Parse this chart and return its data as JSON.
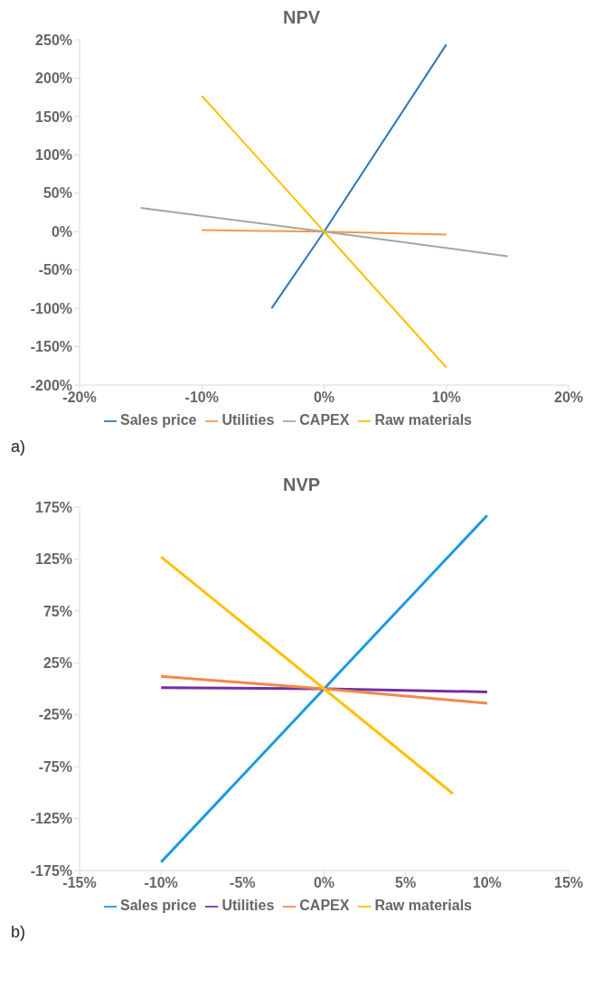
{
  "chart_data": [
    {
      "type": "line",
      "title": "NPV",
      "xlim": [
        -20,
        20
      ],
      "xticks": [
        {
          "value": -20,
          "label": "-20%"
        },
        {
          "value": -10,
          "label": "-10%"
        },
        {
          "value": 0,
          "label": "0%"
        },
        {
          "value": 10,
          "label": "10%"
        },
        {
          "value": 20,
          "label": "20%"
        }
      ],
      "ylim": [
        -200,
        250
      ],
      "yticks": [
        {
          "value": -200,
          "label": "-200%"
        },
        {
          "value": -150,
          "label": "-150%"
        },
        {
          "value": -100,
          "label": "-100%"
        },
        {
          "value": -50,
          "label": "-50%"
        },
        {
          "value": 0,
          "label": "0%"
        },
        {
          "value": 50,
          "label": "50%"
        },
        {
          "value": 100,
          "label": "100%"
        },
        {
          "value": 150,
          "label": "150%"
        },
        {
          "value": 200,
          "label": "200%"
        },
        {
          "value": 250,
          "label": "250%"
        }
      ],
      "grid": false,
      "legend": "bottom",
      "marker": "none",
      "line_style": "solid",
      "annotations": [
        "a)"
      ],
      "series": [
        {
          "name": "Sales price",
          "color": "#2e75b6",
          "x": [
            -4.3,
            0,
            10
          ],
          "values": [
            -100,
            0,
            244
          ]
        },
        {
          "name": "Utilities",
          "color": "#f79646",
          "x": [
            -10,
            0,
            10
          ],
          "values": [
            2,
            0,
            -4
          ]
        },
        {
          "name": "CAPEX",
          "color": "#a5a5a5",
          "x": [
            -15,
            0,
            15
          ],
          "values": [
            31,
            0,
            -32
          ]
        },
        {
          "name": "Raw materials",
          "color": "#ffc000",
          "x": [
            -10,
            0,
            10
          ],
          "values": [
            177,
            0,
            -177
          ]
        }
      ]
    },
    {
      "type": "line",
      "title": "NVP",
      "xlim": [
        -15,
        15
      ],
      "xticks": [
        {
          "value": -15,
          "label": "-15%"
        },
        {
          "value": -10,
          "label": "-10%"
        },
        {
          "value": -5,
          "label": "-5%"
        },
        {
          "value": 0,
          "label": "0%"
        },
        {
          "value": 5,
          "label": "5%"
        },
        {
          "value": 10,
          "label": "10%"
        },
        {
          "value": 15,
          "label": "15%"
        }
      ],
      "ylim": [
        -175,
        175
      ],
      "yticks": [
        {
          "value": -175,
          "label": "-175%"
        },
        {
          "value": -125,
          "label": "-125%"
        },
        {
          "value": -75,
          "label": "-75%"
        },
        {
          "value": -25,
          "label": "-25%"
        },
        {
          "value": 25,
          "label": "25%"
        },
        {
          "value": 75,
          "label": "75%"
        },
        {
          "value": 125,
          "label": "125%"
        },
        {
          "value": 175,
          "label": "175%"
        }
      ],
      "grid": false,
      "legend": "bottom",
      "marker": "none",
      "line_style": "solid",
      "annotations": [
        "b)"
      ],
      "series": [
        {
          "name": "Sales price",
          "color": "#1a9ae0",
          "x": [
            -10,
            0,
            10
          ],
          "values": [
            -167,
            0,
            167
          ]
        },
        {
          "name": "Utilities",
          "color": "#7030a0",
          "x": [
            -10,
            0,
            10
          ],
          "values": [
            1,
            0,
            -3
          ]
        },
        {
          "name": "CAPEX",
          "color": "#f4874b",
          "x": [
            -10,
            0,
            10
          ],
          "values": [
            12,
            0,
            -14
          ]
        },
        {
          "name": "Raw materials",
          "color": "#ffc000",
          "x": [
            -10,
            0,
            7.9
          ],
          "values": [
            127,
            0,
            -101
          ]
        }
      ]
    }
  ]
}
